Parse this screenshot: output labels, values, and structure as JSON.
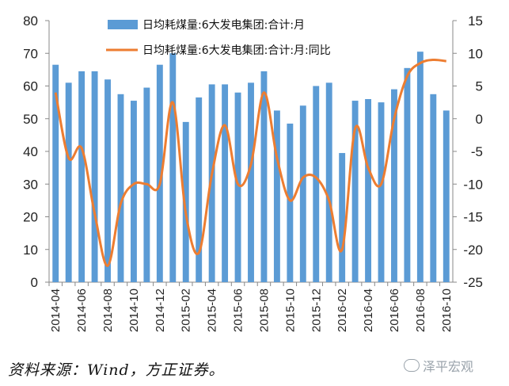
{
  "chart_data": {
    "type": "bar+line",
    "categories": [
      "2014-04",
      "2014-05",
      "2014-06",
      "2014-07",
      "2014-08",
      "2014-09",
      "2014-10",
      "2014-11",
      "2014-12",
      "2015-01",
      "2015-02",
      "2015-03",
      "2015-04",
      "2015-05",
      "2015-06",
      "2015-07",
      "2015-08",
      "2015-09",
      "2015-10",
      "2015-11",
      "2015-12",
      "2016-01",
      "2016-02",
      "2016-03",
      "2016-04",
      "2016-05",
      "2016-06",
      "2016-07",
      "2016-08",
      "2016-09",
      "2016-10"
    ],
    "x_tick_labels": [
      "2014-04",
      "2014-06",
      "2014-08",
      "2014-10",
      "2014-12",
      "2015-02",
      "2015-04",
      "2015-06",
      "2015-08",
      "2015-10",
      "2015-12",
      "2016-02",
      "2016-04",
      "2016-06",
      "2016-08",
      "2016-10"
    ],
    "series": [
      {
        "name": "日均耗煤量:6大发电集团:合计:月",
        "type": "bar",
        "axis": "left",
        "color": "#5b9bd5",
        "values": [
          66.5,
          61,
          64.5,
          64.5,
          62,
          57.5,
          55.5,
          59.5,
          66.5,
          70,
          49,
          56.5,
          60.5,
          60.5,
          58,
          61,
          64.5,
          52.5,
          48.5,
          54,
          60,
          61,
          39.5,
          55.5,
          56,
          55,
          59,
          65.5,
          70.5,
          57.5,
          52.5
        ]
      },
      {
        "name": "日均耗煤量:6大发电集团:合计:月:同比",
        "type": "line",
        "axis": "right",
        "color": "#ed7d31",
        "values": [
          4,
          -6,
          -4.5,
          -14.5,
          -22.5,
          -13,
          -10,
          -10,
          -10,
          2.5,
          -14.5,
          -20.5,
          -8.5,
          -1,
          -10,
          -7,
          4,
          -6,
          -12.5,
          -9,
          -9,
          -12.5,
          -20,
          -1.5,
          -7.5,
          -10,
          0,
          6.5,
          8.5,
          9,
          8.8
        ]
      }
    ],
    "yleft": {
      "min": 0,
      "max": 80,
      "step": 10,
      "ticks": [
        "0",
        "10",
        "20",
        "30",
        "40",
        "50",
        "60",
        "70",
        "80"
      ]
    },
    "yright": {
      "min": -25,
      "max": 15,
      "step": 5,
      "ticks": [
        "-25",
        "-20",
        "-15",
        "-10",
        "-5",
        "0",
        "5",
        "10",
        "15"
      ]
    },
    "legend_position": "top-center",
    "grid": false
  },
  "source_text": "资料来源：Wind，方正证券。",
  "watermark_text": "泽平宏观"
}
